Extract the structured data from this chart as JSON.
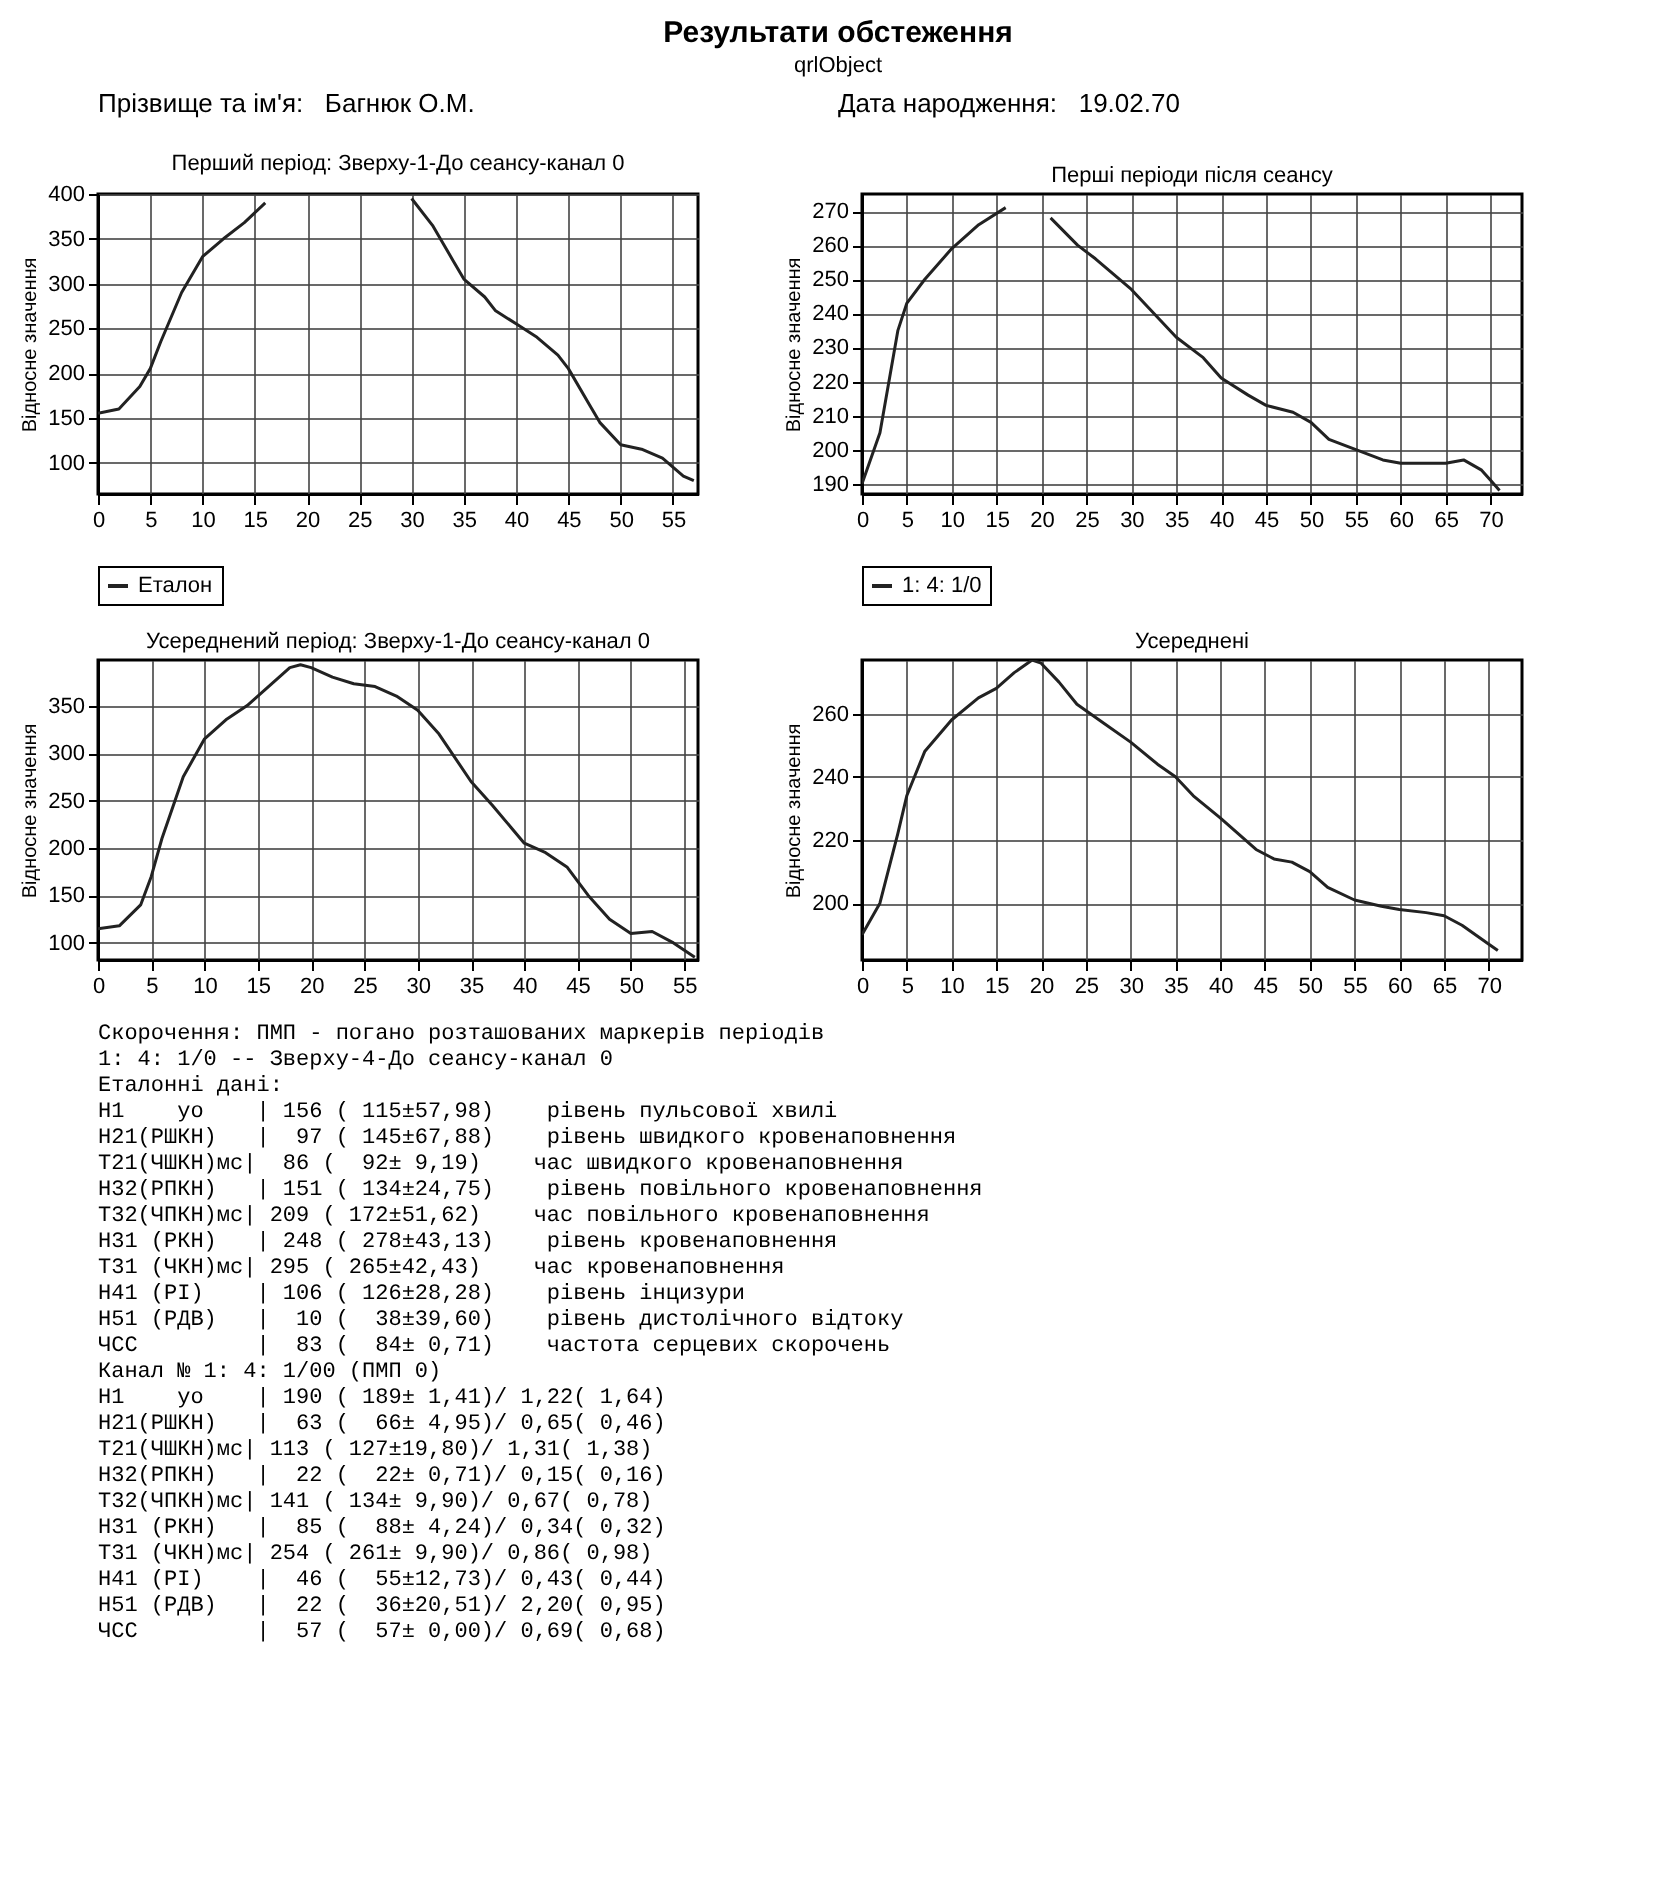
{
  "chart_data": [
    {
      "type": "other",
      "title": "Результати обстеження",
      "subtitle": "qrlObject",
      "annotations": [
        "Прізвище та ім'я:   Багнюк О.М.",
        "Дата народження:   19.02.70"
      ]
    },
    {
      "type": "line",
      "title": "Перший період: Зверху-1-До сеансу-канал 0",
      "ylabel": "Відносне значення",
      "xlim": [
        0,
        57.4
      ],
      "ylim": [
        65,
        400
      ],
      "xticks": [
        0,
        5,
        10,
        15,
        20,
        25,
        30,
        35,
        40,
        45,
        50,
        55
      ],
      "yticks": [
        100,
        150,
        200,
        250,
        300,
        350,
        400
      ],
      "grid": true,
      "legend": "bottom",
      "x": [
        0,
        2,
        4,
        5,
        6,
        8,
        10,
        12,
        14,
        16,
        17,
        18,
        20,
        22,
        24,
        26,
        28,
        29,
        30,
        32,
        34,
        35,
        37,
        38,
        40,
        42,
        44,
        45,
        47,
        48,
        50,
        52,
        54,
        56,
        57
      ],
      "series": [
        {
          "name": "Еталон",
          "color": "#222222",
          "values": [
            155,
            160,
            185,
            205,
            235,
            290,
            330,
            350,
            368,
            390,
            null,
            null,
            null,
            null,
            null,
            null,
            null,
            null,
            395,
            365,
            325,
            305,
            285,
            270,
            255,
            240,
            220,
            205,
            165,
            145,
            120,
            115,
            105,
            85,
            80
          ]
        }
      ]
    },
    {
      "type": "line",
      "title": "Перші періоди після сеансу",
      "ylabel": "Відносне значення",
      "xlim": [
        0,
        73.5
      ],
      "ylim": [
        187,
        275
      ],
      "xticks": [
        0,
        5,
        10,
        15,
        20,
        25,
        30,
        35,
        40,
        45,
        50,
        55,
        60,
        65,
        70
      ],
      "yticks": [
        190,
        200,
        210,
        220,
        230,
        240,
        250,
        260,
        270
      ],
      "grid": true,
      "legend": "bottom",
      "x": [
        0,
        2,
        4,
        5,
        7,
        10,
        13,
        16,
        18,
        19,
        21,
        24,
        26,
        30,
        35,
        38,
        40,
        43,
        45,
        48,
        50,
        52,
        55,
        58,
        60,
        62,
        65,
        67,
        69,
        70,
        71
      ],
      "series": [
        {
          "name": "1: 4: 1/0",
          "color": "#222222",
          "values": [
            190,
            205,
            235,
            243,
            250,
            259,
            266,
            271,
            null,
            null,
            268,
            260,
            256,
            247,
            233,
            227,
            221,
            216,
            213,
            211,
            208,
            203,
            200,
            197,
            196,
            196,
            196,
            197,
            194,
            191,
            188
          ]
        }
      ]
    },
    {
      "type": "line",
      "title": "Усереднений період: Зверху-1-До сеансу-канал 0",
      "ylabel": "Відносне значення",
      "xlim": [
        0,
        56.3
      ],
      "ylim": [
        82,
        398
      ],
      "xticks": [
        0,
        5,
        10,
        15,
        20,
        25,
        30,
        35,
        40,
        45,
        50,
        55
      ],
      "yticks": [
        100,
        150,
        200,
        250,
        300,
        350
      ],
      "grid": true,
      "x": [
        0,
        2,
        4,
        5,
        6,
        8,
        10,
        12,
        14,
        16,
        18,
        19,
        20,
        22,
        24,
        26,
        28,
        30,
        32,
        35,
        37,
        40,
        42,
        44,
        46,
        48,
        50,
        52,
        54,
        56
      ],
      "series": [
        {
          "color": "#222222",
          "values": [
            115,
            118,
            140,
            170,
            210,
            275,
            315,
            335,
            350,
            370,
            390,
            393,
            390,
            380,
            373,
            370,
            360,
            345,
            320,
            270,
            245,
            205,
            195,
            180,
            150,
            125,
            110,
            112,
            100,
            85
          ]
        }
      ]
    },
    {
      "type": "line",
      "title": "Усереднені",
      "ylabel": "Відносне значення",
      "xlim": [
        0,
        73.7
      ],
      "ylim": [
        182,
        277
      ],
      "xticks": [
        0,
        5,
        10,
        15,
        20,
        25,
        30,
        35,
        40,
        45,
        50,
        55,
        60,
        65,
        70
      ],
      "yticks": [
        200,
        220,
        240,
        260
      ],
      "grid": true,
      "x": [
        0,
        2,
        4,
        5,
        7,
        10,
        13,
        15,
        17,
        19,
        20,
        22,
        24,
        27,
        30,
        33,
        35,
        37,
        40,
        42,
        44,
        46,
        48,
        50,
        52,
        55,
        58,
        60,
        63,
        65,
        67,
        70,
        71
      ],
      "series": [
        {
          "color": "#222222",
          "values": [
            190,
            200,
            222,
            234,
            248,
            258,
            265,
            268,
            273,
            277,
            276,
            270,
            263,
            257,
            251,
            244,
            240,
            234,
            227,
            222,
            217,
            214,
            213,
            210,
            205,
            201,
            199,
            198,
            197,
            196,
            193,
            187,
            185
          ]
        }
      ]
    },
    {
      "type": "other",
      "annotations": [
        "Скорочення: ПМП - погано розташованих маркерів періодів",
        " 1: 4: 1/0 -- Зверху-4-До сеансу-канал 0",
        "Еталонні дані:",
        "H1    yo    | 156 ( 115±57,98)    рівень пульсової хвилі",
        "H21(РШКН)   |  97 ( 145±67,88)    рівень швидкого кровенаповнення",
        "T21(ЧШКН)мс|  86 (  92± 9,19)    час швидкого кровенаповнення",
        "H32(РПКН)   | 151 ( 134±24,75)    рівень повільного кровенаповнення",
        "T32(ЧПКН)мс| 209 ( 172±51,62)    час повільного кровенаповнення",
        "H31 (РКН)   | 248 ( 278±43,13)    рівень кровенаповнення",
        "T31 (ЧКН)мс| 295 ( 265±42,43)    час кровенаповнення",
        "H41 (PI)    | 106 ( 126±28,28)    рівень інцизури",
        "H51 (РДВ)   |  10 (  38±39,60)    рівень дистолічного відтоку",
        "ЧСС         |  83 (  84± 0,71)    частота серцевих скорочень",
        "                Канал № 1: 4: 1/00 (ПМП 0)",
        "H1    yo    | 190 ( 189± 1,41)/ 1,22( 1,64)",
        "H21(РШКН)   |  63 (  66± 4,95)/ 0,65( 0,46)",
        "T21(ЧШКН)мс| 113 ( 127±19,80)/ 1,31( 1,38)",
        "H32(РПКН)   |  22 (  22± 0,71)/ 0,15( 0,16)",
        "T32(ЧПКН)мс| 141 ( 134± 9,90)/ 0,67( 0,78)",
        "H31 (РКН)   |  85 (  88± 4,24)/ 0,34( 0,32)",
        "T31 (ЧКН)мс| 254 ( 261± 9,90)/ 0,86( 0,98)",
        "H41 (PI)    |  46 (  55±12,73)/ 0,43( 0,44)",
        "H51 (РДВ)   |  22 (  36±20,51)/ 2,20( 0,95)",
        "ЧСС         |  57 (  57± 0,00)/ 0,69( 0,68)"
      ]
    }
  ]
}
